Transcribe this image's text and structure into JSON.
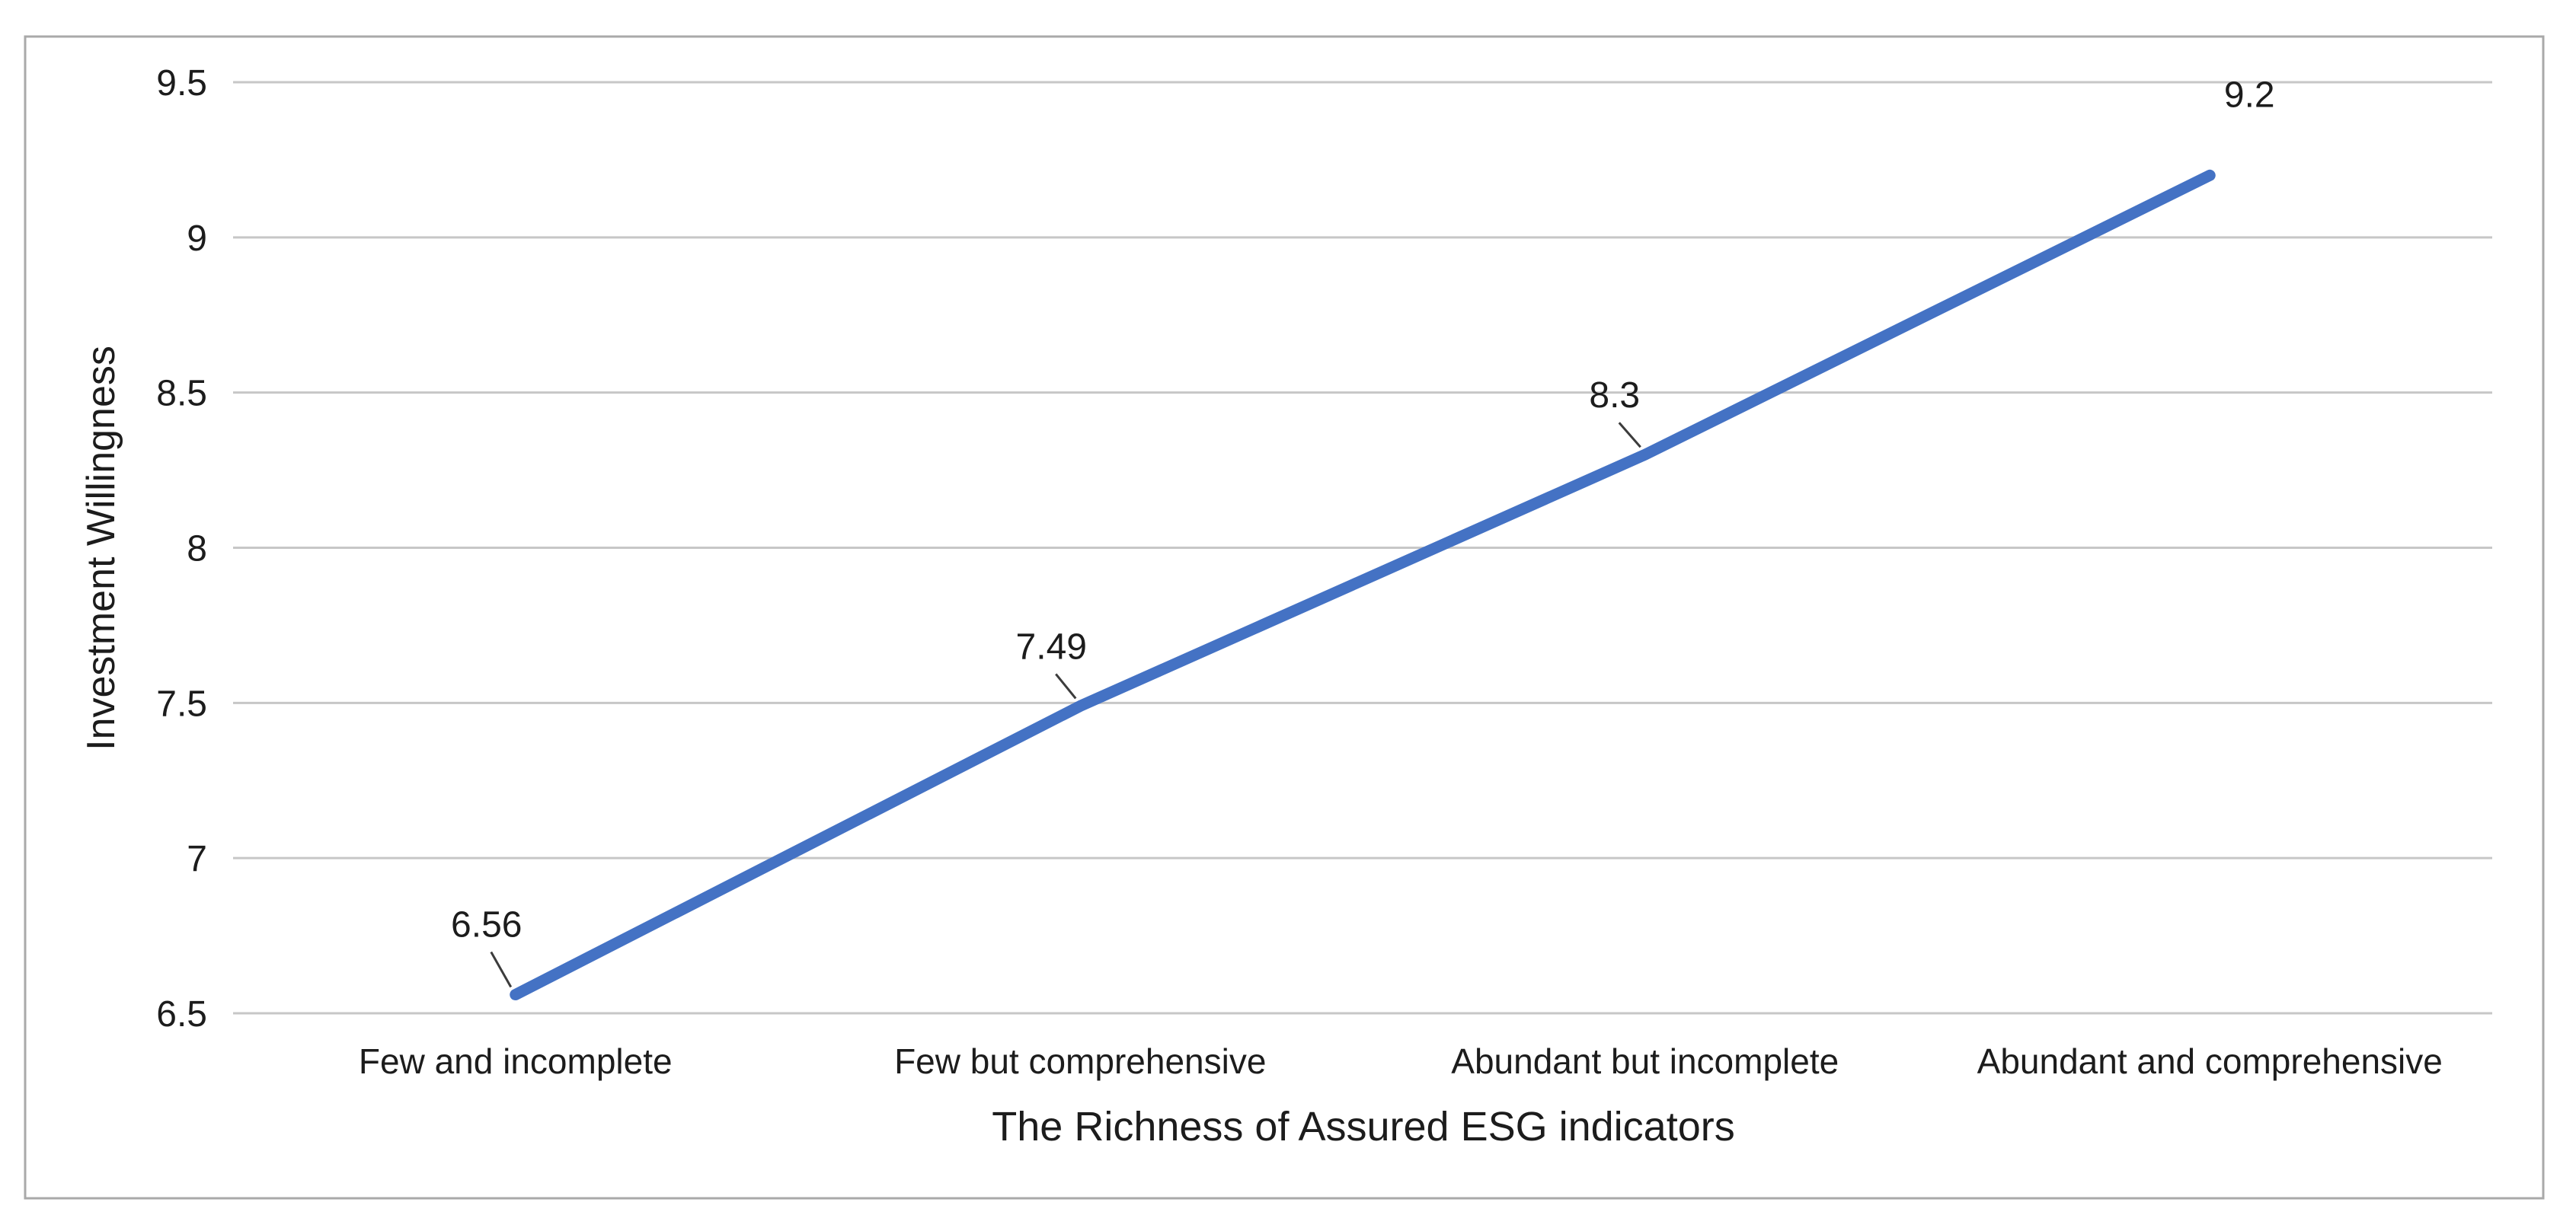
{
  "chart_data": {
    "type": "line",
    "title": "",
    "categories": [
      "Few and incomplete",
      "Few but comprehensive",
      "Abundant but incomplete",
      "Abundant and comprehensive"
    ],
    "series": [
      {
        "name": "Investment Willingness",
        "values": [
          6.56,
          7.49,
          8.3,
          9.2
        ]
      }
    ],
    "data_labels": [
      "6.56",
      "7.49",
      "8.3",
      "9.2"
    ],
    "xlabel": "The Richness of Assured ESG indicators",
    "ylabel": "Investment Willingness",
    "ylim": [
      6.5,
      9.5
    ],
    "ytick_labels": [
      "6.5",
      "7",
      "7.5",
      "8",
      "8.5",
      "9",
      "9.5"
    ],
    "grid": true,
    "legend_position": "none",
    "colors": {
      "line": "#4472C4",
      "gridline": "#C7C7C7",
      "border": "#A9A9A9",
      "text": "#1C1C1C",
      "leader": "#3C3C3C",
      "background": "#FFFFFF"
    }
  }
}
